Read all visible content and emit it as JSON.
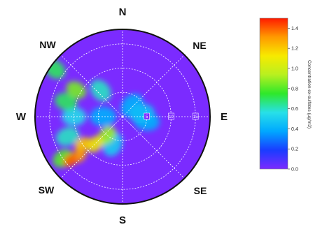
{
  "chart_data": {
    "type": "polar-heatmap",
    "title": "",
    "compass_labels": [
      "N",
      "NE",
      "E",
      "SE",
      "S",
      "SW",
      "W",
      "NW"
    ],
    "radial_ring_labels": [
      "5",
      "10",
      "15"
    ],
    "colorbar": {
      "label": "Concentration ex-sulfates (µg/m3)",
      "ticks": [
        "0.0",
        "0.2",
        "0.4",
        "0.6",
        "0.8",
        "1.0",
        "1.2",
        "1.4"
      ],
      "tick_values": [
        0.0,
        0.2,
        0.4,
        0.6,
        0.8,
        1.0,
        1.2,
        1.4
      ],
      "range": [
        0,
        1.5
      ],
      "colors": [
        "#7b2bff",
        "#1a3cff",
        "#00a8ff",
        "#28e0e8",
        "#2ee82a",
        "#b8f020",
        "#f7ea00",
        "#ff9a00",
        "#ff1a00"
      ]
    },
    "background_value": 0.0,
    "hotspots": [
      {
        "bearing_deg": 230,
        "radius": 14,
        "value": 1.4
      },
      {
        "bearing_deg": 228,
        "radius": 12,
        "value": 1.3
      },
      {
        "bearing_deg": 235,
        "radius": 10,
        "value": 1.2
      },
      {
        "bearing_deg": 225,
        "radius": 8,
        "value": 1.1
      },
      {
        "bearing_deg": 220,
        "radius": 5,
        "value": 0.9
      },
      {
        "bearing_deg": 235,
        "radius": 15,
        "value": 0.8
      },
      {
        "bearing_deg": 250,
        "radius": 12,
        "value": 0.6
      },
      {
        "bearing_deg": 270,
        "radius": 10,
        "value": 0.55
      },
      {
        "bearing_deg": 285,
        "radius": 12,
        "value": 0.7
      },
      {
        "bearing_deg": 300,
        "radius": 11,
        "value": 0.85
      },
      {
        "bearing_deg": 305,
        "radius": 17,
        "value": 0.7
      },
      {
        "bearing_deg": 320,
        "radius": 7,
        "value": 0.6
      },
      {
        "bearing_deg": 270,
        "radius": 4,
        "value": 0.4
      },
      {
        "bearing_deg": 80,
        "radius": 4,
        "value": 0.45
      },
      {
        "bearing_deg": 100,
        "radius": 5,
        "value": 0.4
      },
      {
        "bearing_deg": 40,
        "radius": 3,
        "value": 0.4
      },
      {
        "bearing_deg": 200,
        "radius": 6,
        "value": 0.5
      }
    ]
  }
}
